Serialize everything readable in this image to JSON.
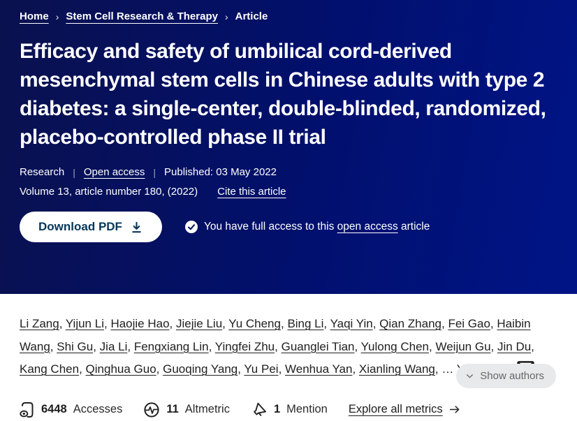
{
  "colors": {
    "header_gradient_start": "#0a114e",
    "header_gradient_mid": "#01106e",
    "header_gradient_end": "#001486",
    "header_text": "#ffffff",
    "download_button_bg": "#ffffff",
    "download_button_text": "#05375a",
    "body_text": "#202020",
    "show_authors_bg": "#e8e9eb",
    "show_authors_text": "#65676b"
  },
  "breadcrumb": {
    "separator": "›",
    "items": [
      {
        "label": "Home"
      },
      {
        "label": "Stem Cell Research & Therapy"
      },
      {
        "label": "Article"
      }
    ]
  },
  "article": {
    "title": "Efficacy and safety of umbilical cord-derived mesenchymal stem cells in Chinese adults with type 2 diabetes: a single-center, double-blinded, randomized, placebo-controlled phase II trial",
    "type_label": "Research",
    "open_access_label": "Open access",
    "published_label": "Published: 03 May 2022",
    "volume_line": "Volume 13, article number 180, (2022)",
    "cite_link_label": "Cite this article",
    "download_button_label": "Download PDF",
    "access_note": {
      "prefix": "You have full access to this",
      "link": "open access",
      "suffix": "article"
    }
  },
  "authors": {
    "names": [
      "Li Zang",
      "Yijun Li",
      "Haojie Hao",
      "Jiejie Liu",
      "Yu Cheng",
      "Bing Li",
      "Yaqi Yin",
      "Qian Zhang",
      "Fei Gao",
      "Haibin Wang",
      "Shi Gu",
      "Jia Li",
      "Fengxiang Lin",
      "Yingfei Zhu",
      "Guanglei Tian",
      "Yulong Chen",
      "Weijun Gu",
      "Jin Du",
      "Kang Chen",
      "Qinghua Guo",
      "Guoqing Yang",
      "Yu Pei",
      "Wenhua Yan",
      "Xianling Wang"
    ],
    "separator": ", ",
    "ellipsis": "…",
    "corresponding": "Yiming Mu",
    "show_authors_label": "Show authors"
  },
  "metrics": {
    "items": [
      {
        "icon": "accesses-icon",
        "value": "6448",
        "label": "Accesses"
      },
      {
        "icon": "altmetric-icon",
        "value": "11",
        "label": "Altmetric"
      },
      {
        "icon": "mention-icon",
        "value": "1",
        "label": "Mention"
      }
    ],
    "explore_link_label": "Explore all metrics"
  }
}
